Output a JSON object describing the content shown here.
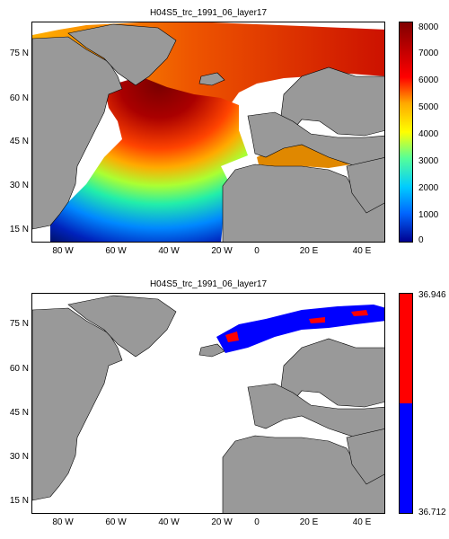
{
  "panel_top": {
    "title": "H04S5_trc_1991_06_layer17",
    "lat_labels": [
      "75 N",
      "60 N",
      "45 N",
      "30 N",
      "15 N"
    ],
    "lon_labels": [
      "80 W",
      "60 W",
      "40 W",
      "20 W",
      "0",
      "20 E",
      "40 E"
    ],
    "colorbar_ticks": [
      "8000",
      "7000",
      "6000",
      "5000",
      "4000",
      "3000",
      "2000",
      "1000",
      "0"
    ],
    "colorbar_range": [
      0,
      8000
    ],
    "colormap": "jet"
  },
  "panel_bottom": {
    "title": "H04S5_trc_1991_06_layer17",
    "lat_labels": [
      "75 N",
      "60 N",
      "45 N",
      "30 N",
      "15 N"
    ],
    "lon_labels": [
      "80 W",
      "60 W",
      "40 W",
      "20 W",
      "0",
      "20 E",
      "40 E"
    ],
    "colorbar_ticks": [
      "36.946",
      "36.712"
    ],
    "colors": {
      "high": "#ff0000",
      "low": "#0000ff"
    }
  },
  "colors": {
    "land": "#999999",
    "missing": "#ffffff"
  }
}
